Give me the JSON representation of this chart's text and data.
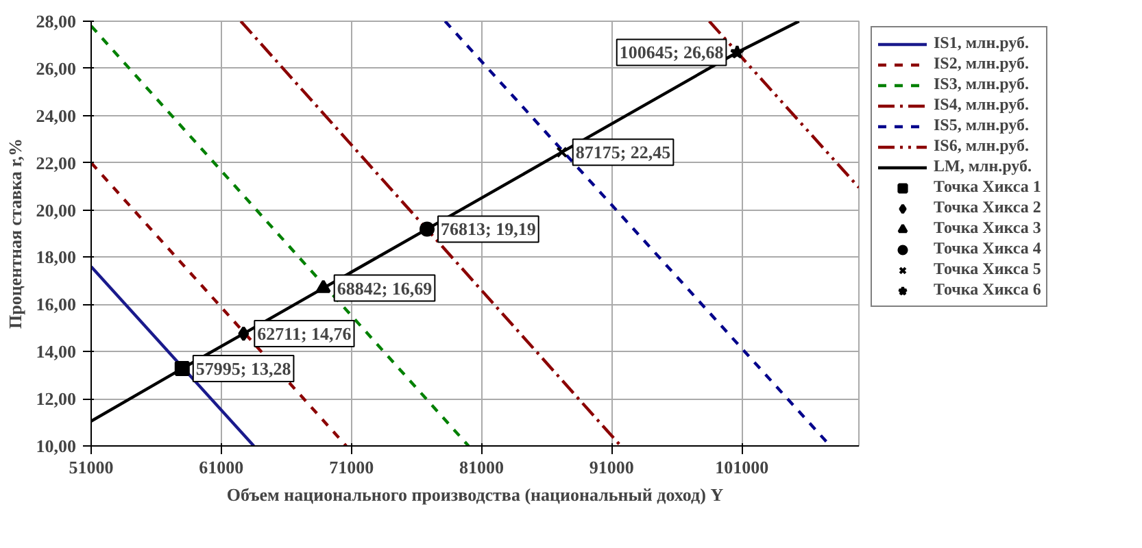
{
  "chart_data": {
    "type": "line",
    "xlabel": "Объем национального производства (национальный доход) Y",
    "ylabel": "Процентная ставка r,%",
    "xlim": [
      51000,
      110000
    ],
    "ylim": [
      10,
      28
    ],
    "xticks": [
      51000,
      61000,
      71000,
      81000,
      91000,
      101000
    ],
    "yticks": [
      {
        "value": 10,
        "label": "10,00"
      },
      {
        "value": 12,
        "label": "12,00"
      },
      {
        "value": 14,
        "label": "14,00"
      },
      {
        "value": 16,
        "label": "16,00"
      },
      {
        "value": 18,
        "label": "18,00"
      },
      {
        "value": 20,
        "label": "20,00"
      },
      {
        "value": 22,
        "label": "22,00"
      },
      {
        "value": 24,
        "label": "24,00"
      },
      {
        "value": 26,
        "label": "26,00"
      },
      {
        "value": 28,
        "label": "28,00"
      }
    ],
    "grid": true,
    "legend": "right",
    "series": [
      {
        "name": "IS1, млн.руб.",
        "color": "#1a1a8c",
        "x": [
          51000,
          63500
        ],
        "values": [
          17.6,
          10
        ],
        "line_style": "solid",
        "marker": "none"
      },
      {
        "name": "IS2, млн.руб.",
        "color": "#8b0000",
        "x": [
          51000,
          70600
        ],
        "values": [
          22.0,
          10
        ],
        "line_style": "dashed",
        "marker": "none"
      },
      {
        "name": "IS3, млн.руб.",
        "color": "#008000",
        "x": [
          51000,
          80000
        ],
        "values": [
          27.8,
          10
        ],
        "line_style": "dashed",
        "marker": "none"
      },
      {
        "name": "IS4, млн.руб.",
        "color": "#8b0000",
        "x": [
          62500,
          91700
        ],
        "values": [
          28,
          10
        ],
        "line_style": "dashdot",
        "marker": "none"
      },
      {
        "name": "IS5, млн.руб.",
        "color": "#00008b",
        "x": [
          78200,
          107800
        ],
        "values": [
          28,
          10
        ],
        "line_style": "dashed",
        "marker": "none"
      },
      {
        "name": "IS6, млн.руб.",
        "color": "#8b0000",
        "x": [
          98500,
          110000
        ],
        "values": [
          28,
          20.95
        ],
        "line_style": "dashdotdot",
        "marker": "none"
      },
      {
        "name": "LM, млн.руб.",
        "color": "#000000",
        "x": [
          51000,
          57995,
          62711,
          68842,
          76813,
          87175,
          100645,
          105400
        ],
        "values": [
          11.05,
          13.28,
          14.76,
          16.69,
          19.19,
          22.45,
          26.68,
          28
        ],
        "line_style": "solid",
        "marker": "none"
      },
      {
        "name": "Точка Хикса 1",
        "type": "scatter",
        "color": "#000000",
        "x": [
          57995
        ],
        "values": [
          13.28
        ],
        "marker": "square"
      },
      {
        "name": "Точка Хикса 2",
        "type": "scatter",
        "color": "#000000",
        "x": [
          62711
        ],
        "values": [
          14.76
        ],
        "marker": "diamond"
      },
      {
        "name": "Точка Хикса 3",
        "type": "scatter",
        "color": "#000000",
        "x": [
          68842
        ],
        "values": [
          16.69
        ],
        "marker": "triangle"
      },
      {
        "name": "Точка Хикса 4",
        "type": "scatter",
        "color": "#000000",
        "x": [
          76813
        ],
        "values": [
          19.19
        ],
        "marker": "circle"
      },
      {
        "name": "Точка Хикса 5",
        "type": "scatter",
        "color": "#000000",
        "x": [
          87175
        ],
        "values": [
          22.45
        ],
        "marker": "cross"
      },
      {
        "name": "Точка Хикса 6",
        "type": "scatter",
        "color": "#000000",
        "x": [
          100645
        ],
        "values": [
          26.68
        ],
        "marker": "star"
      }
    ],
    "annotations": [
      {
        "text": "57995; 13,28",
        "x": 57995,
        "y": 13.28
      },
      {
        "text": "62711; 14,76",
        "x": 62711,
        "y": 14.76
      },
      {
        "text": "68842; 16,69",
        "x": 68842,
        "y": 16.69
      },
      {
        "text": "76813; 19,19",
        "x": 76813,
        "y": 19.19
      },
      {
        "text": "87175; 22,45",
        "x": 87175,
        "y": 22.45
      },
      {
        "text": "100645; 26,68",
        "x": 100645,
        "y": 26.68
      }
    ]
  }
}
